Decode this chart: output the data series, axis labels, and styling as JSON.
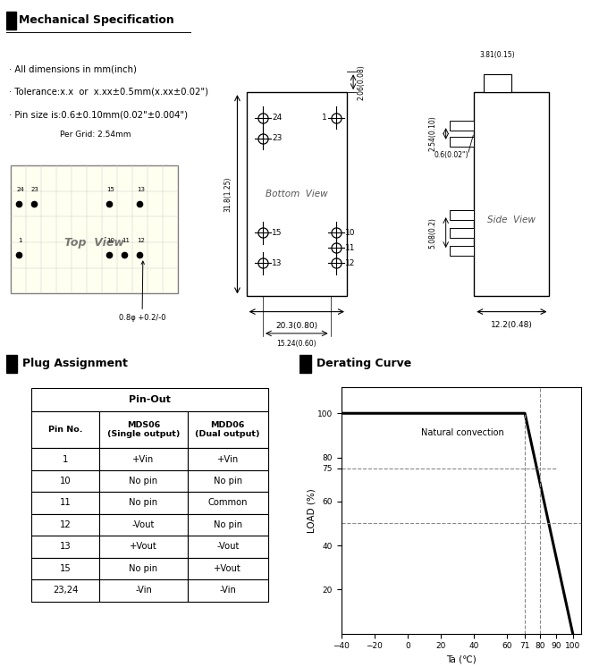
{
  "title_section": "Mechanical Specification",
  "bullets": [
    "All dimensions in mm(inch)",
    "Tolerance:x.x  or  x.xx±0.5mm(x.xx±0.02\")",
    "Pin size is:0.6±0.10mm(0.02\"±0.004\")"
  ],
  "plug_assignment": {
    "title": "Plug Assignment",
    "table_title": "Pin-Out",
    "col1": "Pin No.",
    "col2": "MDS06\n(Single output)",
    "col3": "MDD06\n(Dual output)",
    "rows": [
      [
        "1",
        "+Vin",
        "+Vin"
      ],
      [
        "10",
        "No pin",
        "No pin"
      ],
      [
        "11",
        "No pin",
        "Common"
      ],
      [
        "12",
        "-Vout",
        "No pin"
      ],
      [
        "13",
        "+Vout",
        "-Vout"
      ],
      [
        "15",
        "No pin",
        "+Vout"
      ],
      [
        "23,24",
        "-Vin",
        "-Vin"
      ]
    ]
  },
  "derating_curve": {
    "title": "Derating Curve",
    "xlabel": "Ta (℃)",
    "ylabel": "LOAD (%)",
    "annotation": "Natural convection",
    "curve_x": [
      -40,
      71,
      100
    ],
    "curve_y": [
      100,
      100,
      0
    ],
    "xticks": [
      -40,
      -20,
      0,
      20,
      40,
      60,
      71,
      80,
      90,
      100
    ],
    "yticks": [
      20,
      40,
      60,
      75,
      80,
      100
    ],
    "xmin": -40,
    "xmax": 105,
    "ymin": 0,
    "ymax": 112
  }
}
